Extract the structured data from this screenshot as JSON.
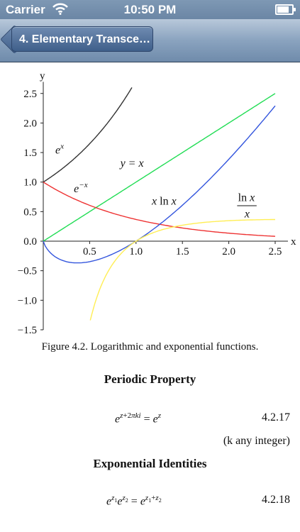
{
  "status_bar": {
    "carrier": "Carrier",
    "time": "10:50 PM",
    "battery_level": 0.9
  },
  "nav": {
    "back_label": "4. Elementary Transce…"
  },
  "figure": {
    "caption": "Figure 4.2. Logarithmic and exponential functions."
  },
  "chart_data": {
    "type": "line",
    "title": "",
    "xlabel": "x",
    "ylabel": "y",
    "xlim": [
      0,
      2.5
    ],
    "ylim": [
      -1.5,
      2.6
    ],
    "x_ticks": [
      "0.5",
      "1.0",
      "1.5",
      "2.0",
      "2.5"
    ],
    "y_ticks": [
      "2.5",
      "2.0",
      "1.5",
      "1.0",
      "0.5",
      "0.0",
      "−0.5",
      "−1.0",
      "−1.5"
    ],
    "grid": false,
    "series": [
      {
        "name": "e^x",
        "color": "#333333",
        "x": [
          0.0,
          0.2,
          0.4,
          0.6,
          0.8,
          0.95
        ],
        "y": [
          1.0,
          1.22,
          1.49,
          1.82,
          2.23,
          2.59
        ]
      },
      {
        "name": "y = x",
        "color": "#22dd55",
        "x": [
          0.0,
          0.5,
          1.0,
          1.5,
          2.0,
          2.5
        ],
        "y": [
          0.0,
          0.5,
          1.0,
          1.5,
          2.0,
          2.5
        ]
      },
      {
        "name": "e^−x",
        "color": "#ee3333",
        "x": [
          0.0,
          0.25,
          0.5,
          0.75,
          1.0,
          1.5,
          2.0,
          2.5
        ],
        "y": [
          1.0,
          0.78,
          0.61,
          0.47,
          0.37,
          0.22,
          0.14,
          0.08
        ]
      },
      {
        "name": "x ln x",
        "color": "#3355dd",
        "x": [
          0.0,
          0.1,
          0.2,
          0.37,
          0.5,
          0.75,
          1.0,
          1.25,
          1.5,
          2.0,
          2.5
        ],
        "y": [
          0.0,
          -0.23,
          -0.32,
          -0.37,
          -0.35,
          -0.22,
          0.0,
          0.28,
          0.61,
          1.39,
          2.29
        ]
      },
      {
        "name": "ln x / x",
        "color": "#ffee55",
        "x": [
          0.5,
          0.6,
          0.7,
          0.8,
          0.9,
          1.0,
          1.25,
          1.5,
          2.0,
          2.5
        ],
        "y": [
          -1.39,
          -0.85,
          -0.51,
          -0.28,
          -0.12,
          0.0,
          0.18,
          0.27,
          0.35,
          0.37
        ]
      }
    ],
    "annotations": [
      "e^x",
      "y = x",
      "e^−x",
      "x ln x",
      "ln x / x"
    ]
  },
  "sections": {
    "periodic_heading": "Periodic Property",
    "periodic_eq_number": "4.2.17",
    "periodic_note": "(k any integer)",
    "exponential_heading": "Exponential Identities",
    "exponential_eq_number": "4.2.18"
  }
}
